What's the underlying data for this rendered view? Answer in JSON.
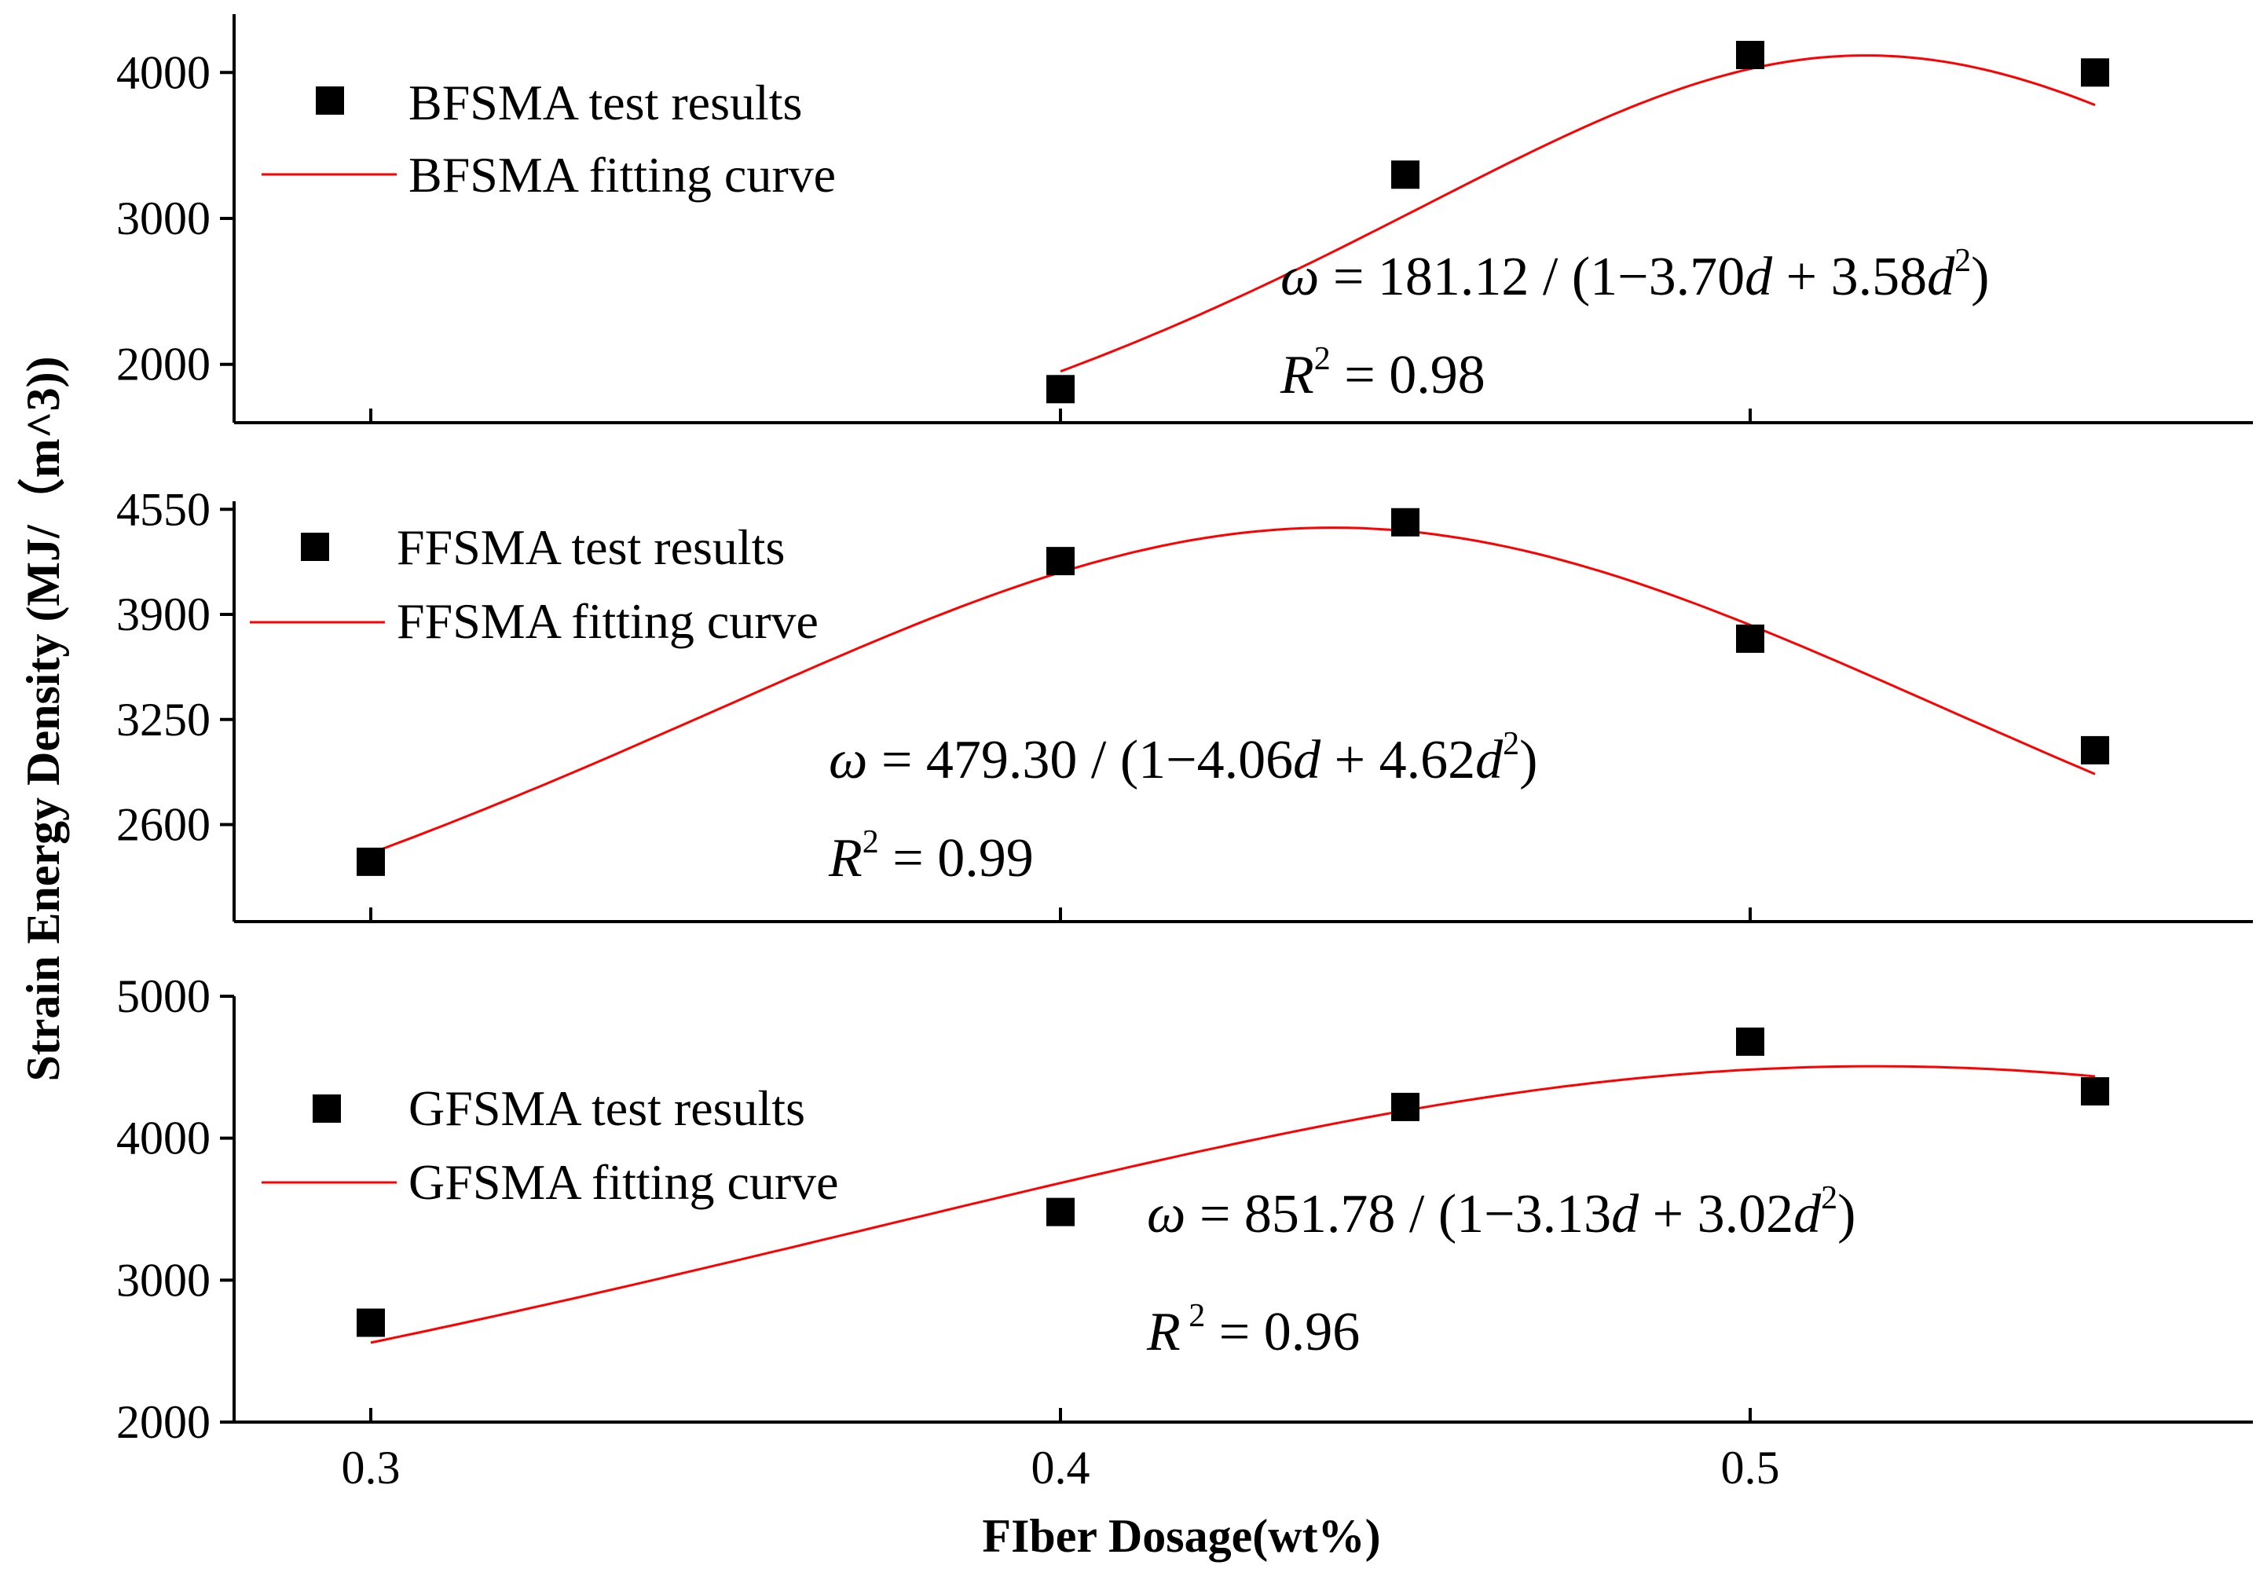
{
  "chart_data": {
    "xlabel": "FIber Dosage(wt%)",
    "ylabel": "Strain Energy Density (MJ/（m^3))",
    "panels": [
      {
        "type": "scatter+line",
        "series_name": "BFSMA",
        "legend": {
          "points": "BFSMA test results",
          "line": "BFSMA fitting curve",
          "placement": "top-left"
        },
        "equation": {
          "lhs": "ω",
          "coef": "181.12",
          "b": "3.70",
          "c": "3.58"
        },
        "r2": {
          "symbol": "R",
          "power": "2",
          "value": "0.98"
        },
        "yticks": [
          2000,
          3000,
          4000
        ],
        "ylim": [
          1600,
          4400
        ],
        "x": [
          0.4,
          0.45,
          0.5,
          0.55
        ],
        "y": [
          1830,
          3300,
          4120,
          4000
        ],
        "fit_x": [
          0.4,
          0.55
        ],
        "fit_params": {
          "a": 181.12,
          "b": -3.7,
          "c": 3.58
        }
      },
      {
        "type": "scatter+line",
        "series_name": "FFSMA",
        "legend": {
          "points": "FFSMA test results",
          "line": "FFSMA fitting curve",
          "placement": "top-left"
        },
        "equation": {
          "lhs": "ω",
          "coef": "479.30",
          "b": "4.06",
          "c": "4.62"
        },
        "r2": {
          "symbol": "R",
          "power": "2",
          "value": "0.99"
        },
        "yticks": [
          2600,
          3250,
          3900,
          4550
        ],
        "ylim": [
          2000,
          4600
        ],
        "x": [
          0.3,
          0.4,
          0.45,
          0.5,
          0.55
        ],
        "y": [
          2370,
          4230,
          4470,
          3750,
          3060
        ],
        "fit_x": [
          0.3,
          0.55
        ],
        "fit_params": {
          "a": 479.3,
          "b": -4.06,
          "c": 4.62
        }
      },
      {
        "type": "scatter+line",
        "series_name": "GFSMA",
        "legend": {
          "points": "GFSMA test results",
          "line": "GFSMA fitting curve",
          "placement": "middle-left"
        },
        "equation": {
          "lhs": "ω",
          "coef": "851.78",
          "b": "3.13",
          "c": "3.02"
        },
        "r2": {
          "symbol": "R",
          "power": "2",
          "value": "0.96"
        },
        "yticks": [
          2000,
          3000,
          4000,
          5000
        ],
        "ylim": [
          2000,
          5000
        ],
        "xticks": [
          "0.3",
          "0.4",
          "0.5"
        ],
        "xtick_values": [
          0.3,
          0.4,
          0.5
        ],
        "x": [
          0.3,
          0.4,
          0.45,
          0.5,
          0.55
        ],
        "y": [
          2700,
          3480,
          4220,
          4680,
          4330
        ],
        "fit_x": [
          0.3,
          0.55
        ],
        "fit_params": {
          "a": 851.78,
          "b": -3.13,
          "c": 3.02
        }
      }
    ]
  },
  "colors": {
    "points": "#000000",
    "fit_line": "#ff0000",
    "axes": "#000000"
  }
}
